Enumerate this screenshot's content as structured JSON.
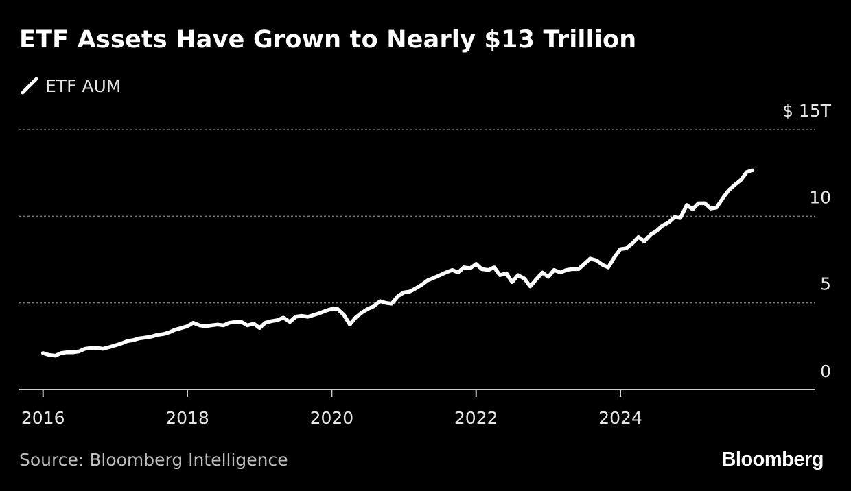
{
  "chart_data": {
    "type": "line",
    "title": "ETF Assets Have Grown to Nearly $13 Trillion",
    "series": [
      {
        "name": "ETF AUM",
        "color": "#ffffff",
        "points": [
          [
            2016.0,
            2.1
          ],
          [
            2016.08,
            2.0
          ],
          [
            2016.17,
            1.95
          ],
          [
            2016.25,
            2.1
          ],
          [
            2016.33,
            2.15
          ],
          [
            2016.42,
            2.15
          ],
          [
            2016.5,
            2.2
          ],
          [
            2016.58,
            2.35
          ],
          [
            2016.67,
            2.4
          ],
          [
            2016.75,
            2.4
          ],
          [
            2016.83,
            2.35
          ],
          [
            2016.92,
            2.45
          ],
          [
            2017.0,
            2.55
          ],
          [
            2017.08,
            2.65
          ],
          [
            2017.17,
            2.8
          ],
          [
            2017.25,
            2.85
          ],
          [
            2017.33,
            2.95
          ],
          [
            2017.42,
            3.0
          ],
          [
            2017.5,
            3.05
          ],
          [
            2017.58,
            3.15
          ],
          [
            2017.67,
            3.2
          ],
          [
            2017.75,
            3.3
          ],
          [
            2017.83,
            3.45
          ],
          [
            2017.92,
            3.55
          ],
          [
            2018.0,
            3.65
          ],
          [
            2018.08,
            3.85
          ],
          [
            2018.17,
            3.7
          ],
          [
            2018.25,
            3.65
          ],
          [
            2018.33,
            3.7
          ],
          [
            2018.42,
            3.75
          ],
          [
            2018.5,
            3.7
          ],
          [
            2018.58,
            3.85
          ],
          [
            2018.67,
            3.9
          ],
          [
            2018.75,
            3.9
          ],
          [
            2018.83,
            3.7
          ],
          [
            2018.92,
            3.8
          ],
          [
            2019.0,
            3.55
          ],
          [
            2019.08,
            3.85
          ],
          [
            2019.17,
            3.95
          ],
          [
            2019.25,
            4.0
          ],
          [
            2019.33,
            4.15
          ],
          [
            2019.42,
            3.9
          ],
          [
            2019.5,
            4.2
          ],
          [
            2019.58,
            4.25
          ],
          [
            2019.67,
            4.2
          ],
          [
            2019.75,
            4.3
          ],
          [
            2019.83,
            4.4
          ],
          [
            2019.92,
            4.55
          ],
          [
            2020.0,
            4.65
          ],
          [
            2020.08,
            4.65
          ],
          [
            2020.17,
            4.3
          ],
          [
            2020.25,
            3.75
          ],
          [
            2020.33,
            4.15
          ],
          [
            2020.42,
            4.45
          ],
          [
            2020.5,
            4.65
          ],
          [
            2020.58,
            4.8
          ],
          [
            2020.67,
            5.1
          ],
          [
            2020.75,
            5.0
          ],
          [
            2020.83,
            4.95
          ],
          [
            2020.92,
            5.4
          ],
          [
            2021.0,
            5.6
          ],
          [
            2021.08,
            5.65
          ],
          [
            2021.17,
            5.85
          ],
          [
            2021.25,
            6.05
          ],
          [
            2021.33,
            6.3
          ],
          [
            2021.42,
            6.45
          ],
          [
            2021.5,
            6.6
          ],
          [
            2021.58,
            6.75
          ],
          [
            2021.67,
            6.9
          ],
          [
            2021.75,
            6.75
          ],
          [
            2021.83,
            7.05
          ],
          [
            2021.92,
            7.0
          ],
          [
            2022.0,
            7.25
          ],
          [
            2022.08,
            6.95
          ],
          [
            2022.17,
            6.9
          ],
          [
            2022.25,
            7.05
          ],
          [
            2022.33,
            6.6
          ],
          [
            2022.42,
            6.7
          ],
          [
            2022.5,
            6.2
          ],
          [
            2022.58,
            6.6
          ],
          [
            2022.67,
            6.4
          ],
          [
            2022.75,
            5.95
          ],
          [
            2022.83,
            6.35
          ],
          [
            2022.92,
            6.75
          ],
          [
            2023.0,
            6.5
          ],
          [
            2023.08,
            6.9
          ],
          [
            2023.17,
            6.75
          ],
          [
            2023.25,
            6.9
          ],
          [
            2023.33,
            6.95
          ],
          [
            2023.42,
            6.95
          ],
          [
            2023.5,
            7.25
          ],
          [
            2023.58,
            7.55
          ],
          [
            2023.67,
            7.45
          ],
          [
            2023.75,
            7.2
          ],
          [
            2023.83,
            7.05
          ],
          [
            2023.92,
            7.65
          ],
          [
            2024.0,
            8.1
          ],
          [
            2024.08,
            8.15
          ],
          [
            2024.17,
            8.45
          ],
          [
            2024.25,
            8.8
          ],
          [
            2024.33,
            8.55
          ],
          [
            2024.42,
            8.95
          ],
          [
            2024.5,
            9.15
          ],
          [
            2024.58,
            9.45
          ],
          [
            2024.67,
            9.65
          ],
          [
            2024.75,
            9.95
          ],
          [
            2024.83,
            9.9
          ],
          [
            2024.92,
            10.65
          ],
          [
            2025.0,
            10.4
          ],
          [
            2025.08,
            10.75
          ],
          [
            2025.17,
            10.75
          ],
          [
            2025.25,
            10.45
          ],
          [
            2025.33,
            10.5
          ],
          [
            2025.42,
            11.05
          ],
          [
            2025.5,
            11.5
          ],
          [
            2025.58,
            11.8
          ],
          [
            2025.67,
            12.1
          ],
          [
            2025.75,
            12.55
          ],
          [
            2025.83,
            12.65
          ]
        ]
      }
    ],
    "x_ticks": [
      "2016",
      "2018",
      "2020",
      "2022",
      "2024"
    ],
    "x_tick_values": [
      2016,
      2018,
      2020,
      2022,
      2024
    ],
    "y_ticks": [
      {
        "value": 0,
        "label": "0"
      },
      {
        "value": 5,
        "label": "5"
      },
      {
        "value": 10,
        "label": "10"
      },
      {
        "value": 15,
        "label": "$ 15T"
      }
    ],
    "xlim": [
      2015.67,
      2026.7
    ],
    "ylim": [
      0,
      15
    ],
    "grid": true,
    "legend_position": "top-left",
    "background": "#000000",
    "gridline_color": "#777777",
    "axis_color": "#cfcfcf",
    "text_color": "#e6e6e6"
  },
  "source": "Source: Bloomberg Intelligence",
  "brand": "Bloomberg"
}
